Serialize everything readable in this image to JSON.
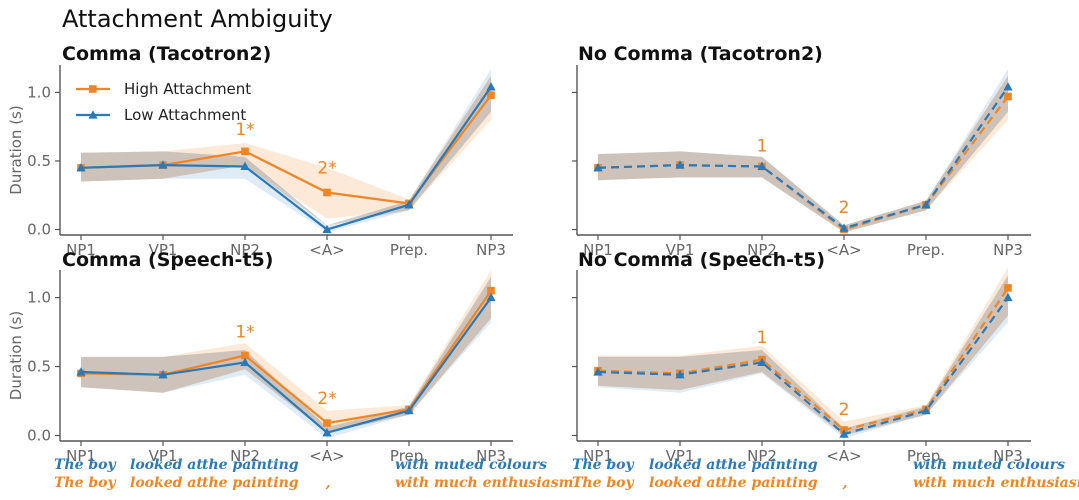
{
  "title": "Attachment Ambiguity",
  "colors": {
    "high": "#f28522",
    "low": "#2a7ab9",
    "band_overlap": "#bfb3a6",
    "axis": "#555555"
  },
  "legend": {
    "high": "High Attachment",
    "low": "Low Attachment",
    "placement": "top-left"
  },
  "chart_data": [
    {
      "type": "line",
      "title": "Comma (Tacotron2)",
      "ylabel": "Duration (s)",
      "categories": [
        "NP1",
        "VP1",
        "NP2",
        "<A>",
        "Prep.",
        "NP3"
      ],
      "ylim": [
        -0.04,
        1.2
      ],
      "yticks": [
        "0.0",
        "0.5",
        "1.0"
      ],
      "grid": false,
      "linestyle": "solid",
      "series": [
        {
          "name": "High Attachment",
          "marker": "square",
          "values": [
            0.45,
            0.47,
            0.57,
            0.27,
            0.19,
            0.98
          ],
          "lower": [
            0.35,
            0.37,
            0.47,
            0.08,
            0.14,
            0.8
          ],
          "upper": [
            0.56,
            0.57,
            0.63,
            0.45,
            0.22,
            1.12
          ]
        },
        {
          "name": "Low Attachment",
          "marker": "triangle",
          "values": [
            0.45,
            0.47,
            0.46,
            0.0,
            0.18,
            1.04
          ],
          "lower": [
            0.35,
            0.37,
            0.37,
            -0.02,
            0.14,
            0.86
          ],
          "upper": [
            0.56,
            0.57,
            0.53,
            0.03,
            0.21,
            1.17
          ]
        }
      ],
      "annotations": [
        {
          "text": "1*",
          "category": "NP2",
          "y": 0.69
        },
        {
          "text": "2*",
          "category": "<A>",
          "y": 0.41
        }
      ]
    },
    {
      "type": "line",
      "title": "No Comma (Tacotron2)",
      "ylabel": "",
      "categories": [
        "NP1",
        "VP1",
        "NP2",
        "<A>",
        "Prep.",
        "NP3"
      ],
      "ylim": [
        -0.04,
        1.2
      ],
      "yticks": [],
      "grid": false,
      "linestyle": "dashed",
      "series": [
        {
          "name": "High Attachment",
          "marker": "square",
          "values": [
            0.45,
            0.47,
            0.46,
            0.0,
            0.18,
            0.97
          ],
          "lower": [
            0.36,
            0.38,
            0.38,
            -0.02,
            0.14,
            0.8
          ],
          "upper": [
            0.55,
            0.57,
            0.53,
            0.03,
            0.21,
            1.12
          ]
        },
        {
          "name": "Low Attachment",
          "marker": "triangle",
          "values": [
            0.45,
            0.47,
            0.46,
            0.01,
            0.18,
            1.04
          ],
          "lower": [
            0.36,
            0.38,
            0.38,
            -0.02,
            0.14,
            0.86
          ],
          "upper": [
            0.55,
            0.57,
            0.53,
            0.03,
            0.21,
            1.17
          ]
        }
      ],
      "annotations": [
        {
          "text": "1",
          "category": "NP2",
          "y": 0.57
        },
        {
          "text": "2",
          "category": "<A>",
          "y": 0.12
        }
      ]
    },
    {
      "type": "line",
      "title": "Comma (Speech-t5)",
      "ylabel": "Duration (s)",
      "categories": [
        "NP1",
        "VP1",
        "NP2",
        "<A>",
        "Prep.",
        "NP3"
      ],
      "ylim": [
        -0.04,
        1.2
      ],
      "yticks": [
        "0.0",
        "0.5",
        "1.0"
      ],
      "grid": false,
      "linestyle": "solid",
      "series": [
        {
          "name": "High Attachment",
          "marker": "square",
          "values": [
            0.45,
            0.44,
            0.58,
            0.09,
            0.19,
            1.05
          ],
          "lower": [
            0.35,
            0.31,
            0.48,
            0.02,
            0.15,
            0.85
          ],
          "upper": [
            0.57,
            0.57,
            0.67,
            0.18,
            0.22,
            1.2
          ]
        },
        {
          "name": "Low Attachment",
          "marker": "triangle",
          "values": [
            0.46,
            0.44,
            0.53,
            0.02,
            0.18,
            1.0
          ],
          "lower": [
            0.35,
            0.31,
            0.44,
            -0.02,
            0.15,
            0.82
          ],
          "upper": [
            0.57,
            0.57,
            0.62,
            0.06,
            0.21,
            1.15
          ]
        }
      ],
      "annotations": [
        {
          "text": "1*",
          "category": "NP2",
          "y": 0.71
        },
        {
          "text": "2*",
          "category": "<A>",
          "y": 0.23
        }
      ]
    },
    {
      "type": "line",
      "title": "No Comma (Speech-t5)",
      "ylabel": "",
      "categories": [
        "NP1",
        "VP1",
        "NP2",
        "<A>",
        "Prep.",
        "NP3"
      ],
      "ylim": [
        -0.04,
        1.2
      ],
      "yticks": [],
      "grid": false,
      "linestyle": "dashed",
      "series": [
        {
          "name": "High Attachment",
          "marker": "square",
          "values": [
            0.47,
            0.45,
            0.55,
            0.04,
            0.19,
            1.07
          ],
          "lower": [
            0.36,
            0.33,
            0.46,
            0.0,
            0.15,
            0.87
          ],
          "upper": [
            0.58,
            0.58,
            0.65,
            0.1,
            0.22,
            1.22
          ]
        },
        {
          "name": "Low Attachment",
          "marker": "triangle",
          "values": [
            0.46,
            0.44,
            0.53,
            0.01,
            0.18,
            1.0
          ],
          "lower": [
            0.35,
            0.31,
            0.45,
            -0.02,
            0.15,
            0.82
          ],
          "upper": [
            0.57,
            0.57,
            0.62,
            0.05,
            0.21,
            1.16
          ]
        }
      ],
      "annotations": [
        {
          "text": "1",
          "category": "NP2",
          "y": 0.67
        },
        {
          "text": "2",
          "category": "<A>",
          "y": 0.15
        }
      ]
    }
  ],
  "sentences": {
    "low": [
      "The boy",
      "looked at",
      "the painting",
      "",
      "with",
      "muted colours"
    ],
    "high": [
      "The boy",
      "looked at",
      "the painting",
      ",",
      "with",
      "much enthusiasm"
    ]
  }
}
